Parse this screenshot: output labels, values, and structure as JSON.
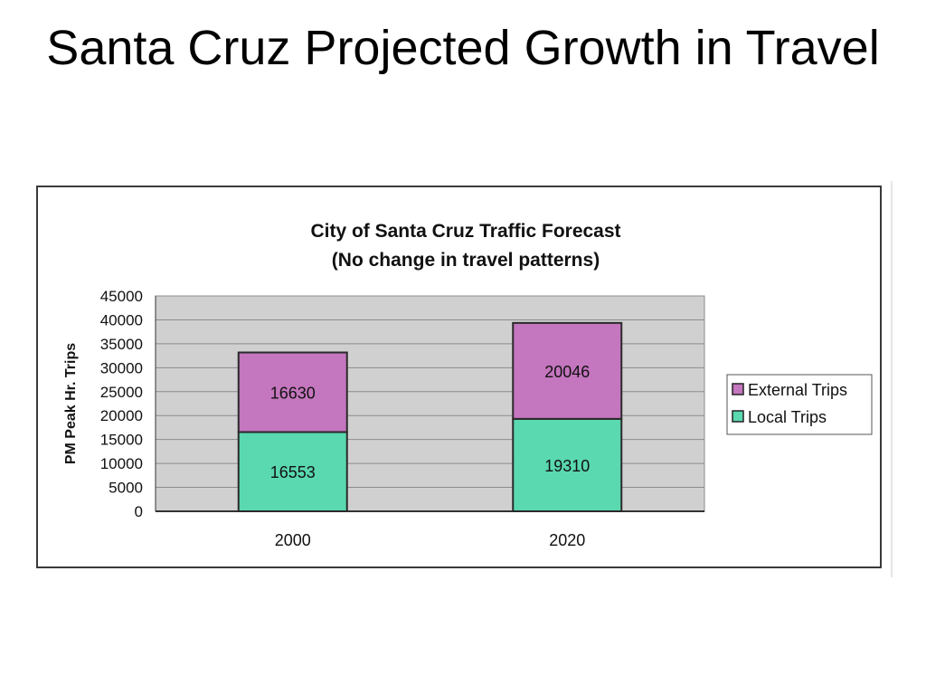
{
  "slide": {
    "title": "Santa Cruz Projected Growth in Travel"
  },
  "chart_data": {
    "type": "bar",
    "stacked": true,
    "title": "City of Santa Cruz Traffic Forecast",
    "subtitle": "(No change in travel patterns)",
    "xlabel": "",
    "ylabel": "PM Peak Hr. Trips",
    "categories": [
      "2000",
      "2020"
    ],
    "ylim": [
      0,
      45000
    ],
    "yticks": [
      0,
      5000,
      10000,
      15000,
      20000,
      25000,
      30000,
      35000,
      40000,
      45000
    ],
    "grid": true,
    "legend_position": "right",
    "series": [
      {
        "name": "Local Trips",
        "values": [
          16553,
          19310
        ],
        "color": "#5ad8b0"
      },
      {
        "name": "External Trips",
        "values": [
          16630,
          20046
        ],
        "color": "#c476be"
      }
    ],
    "legend_order": [
      "External Trips",
      "Local Trips"
    ],
    "plot_background": "#d0d0d0"
  }
}
